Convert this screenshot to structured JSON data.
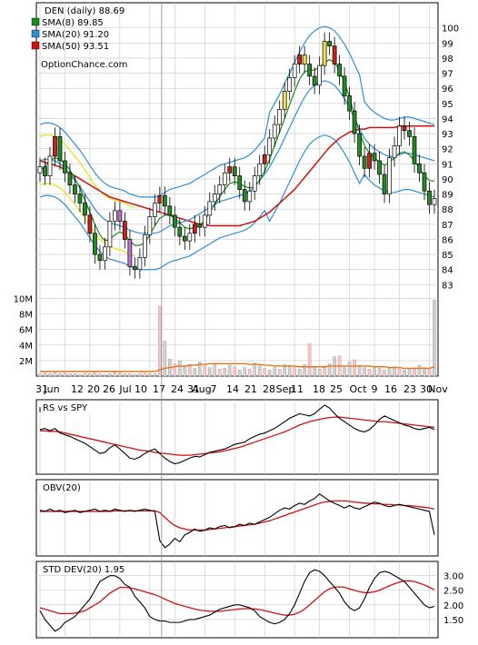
{
  "chart_data": [
    {
      "type": "candlestick",
      "panel": "price",
      "ticker_label": "DEN (daily) 88.69",
      "legend": [
        {
          "label": "SMA(8) 89.85",
          "color": "#1a8a1a"
        },
        {
          "label": "SMA(20) 91.20",
          "color": "#2e8fd6"
        },
        {
          "label": "SMA(50) 93.51",
          "color": "#d01010"
        }
      ],
      "watermark": "OptionChance.com",
      "ylim": [
        82,
        101
      ],
      "y_ticks": [
        "100",
        "99",
        "98",
        "97",
        "96",
        "95",
        "94",
        "93",
        "92",
        "91",
        "90",
        "89",
        "88",
        "87",
        "86",
        "85",
        "84",
        "83"
      ],
      "x_labels": [
        "31",
        "Jun",
        "12",
        "20",
        "26",
        "Jul",
        "10",
        "17",
        "24",
        "31",
        "Aug",
        "7",
        "14",
        "21",
        "28",
        "Sep",
        "11",
        "18",
        "25",
        "Oct",
        "9",
        "16",
        "23",
        "30",
        "Nov"
      ],
      "close_approx": [
        90.8,
        90.2,
        91.5,
        92.8,
        91.2,
        90.4,
        89.6,
        89.0,
        88.4,
        87.6,
        86.4,
        85.0,
        84.6,
        85.5,
        87.2,
        87.9,
        87.2,
        86.0,
        84.2,
        84.0,
        84.8,
        86.3,
        87.5,
        88.4,
        88.9,
        88.2,
        87.6,
        86.8,
        86.2,
        85.9,
        86.4,
        87.0,
        86.8,
        87.6,
        88.5,
        89.0,
        89.6,
        90.4,
        90.8,
        90.2,
        89.3,
        88.5,
        89.2,
        90.2,
        91.0,
        91.6,
        92.7,
        93.6,
        94.6,
        95.8,
        96.7,
        97.6,
        98.2,
        97.6,
        96.8,
        96.2,
        97.5,
        99.1,
        98.8,
        97.6,
        96.8,
        95.5,
        94.5,
        93.0,
        91.5,
        90.7,
        91.7,
        91.2,
        90.3,
        89.0,
        91.4,
        92.2,
        93.5,
        93.2,
        92.8,
        91.0,
        90.4,
        89.2,
        88.3,
        88.7
      ],
      "sma8_approx": [
        90.6,
        90.8,
        91.2,
        91.4,
        91.3,
        91.0,
        90.6,
        90.0,
        89.4,
        88.6,
        87.8,
        87.0,
        86.3,
        85.9,
        86.0,
        86.3,
        86.5,
        86.3,
        85.9,
        85.6,
        85.6,
        85.8,
        86.3,
        86.9,
        87.4,
        87.6,
        87.6,
        87.4,
        87.1,
        86.8,
        86.7,
        86.8,
        86.9,
        87.3,
        87.8,
        88.3,
        88.8,
        89.3,
        89.7,
        89.8,
        89.7,
        89.5,
        89.4,
        89.5,
        89.9,
        90.5,
        91.3,
        92.2,
        93.1,
        94.0,
        94.9,
        95.8,
        96.6,
        97.1,
        97.2,
        97.2,
        97.4,
        97.7,
        97.9,
        97.7,
        97.2,
        96.4,
        95.4,
        94.2,
        93.1,
        92.2,
        91.7,
        91.4,
        91.1,
        90.9,
        91.1,
        91.4,
        91.7,
        91.8,
        91.6,
        91.2,
        90.7,
        90.2,
        89.9,
        89.85
      ],
      "sma20_approx": [
        91.2,
        91.3,
        91.3,
        91.2,
        91.0,
        90.7,
        90.3,
        89.9,
        89.5,
        89.0,
        88.5,
        88.0,
        87.6,
        87.3,
        87.1,
        87.0,
        86.9,
        86.8,
        86.6,
        86.5,
        86.4,
        86.4,
        86.4,
        86.4,
        86.5,
        86.7,
        86.9,
        87.0,
        87.1,
        87.2,
        87.3,
        87.5,
        87.7,
        87.9,
        88.1,
        88.3,
        88.5,
        88.6,
        88.7,
        88.8,
        88.9,
        89.0,
        89.2,
        89.5,
        89.9,
        90.3,
        90.8,
        91.4,
        92.0,
        92.7,
        93.4,
        94.1,
        94.8,
        95.4,
        95.9,
        96.2,
        96.4,
        96.5,
        96.4,
        96.2,
        95.8,
        95.3,
        94.7,
        94.0,
        93.3,
        92.7,
        92.3,
        92.0,
        91.8,
        91.6,
        91.5,
        91.5,
        91.6,
        91.7,
        91.7,
        91.6,
        91.5,
        91.4,
        91.3,
        91.2
      ],
      "sma50_approx": [
        91.2,
        91.1,
        91.0,
        90.9,
        90.8,
        90.6,
        90.4,
        90.2,
        90.0,
        89.8,
        89.6,
        89.4,
        89.2,
        89.0,
        88.8,
        88.7,
        88.6,
        88.5,
        88.4,
        88.3,
        88.2,
        88.1,
        88.0,
        87.9,
        87.8,
        87.7,
        87.6,
        87.5,
        87.4,
        87.3,
        87.2,
        87.1,
        87.0,
        87.0,
        86.9,
        86.9,
        86.9,
        86.9,
        86.9,
        86.9,
        86.9,
        87.0,
        87.1,
        87.2,
        87.4,
        87.6,
        87.8,
        88.1,
        88.4,
        88.7,
        89.0,
        89.3,
        89.7,
        90.1,
        90.5,
        90.9,
        91.3,
        91.7,
        92.1,
        92.4,
        92.7,
        92.9,
        93.1,
        93.2,
        93.3,
        93.3,
        93.4,
        93.4,
        93.4,
        93.4,
        93.4,
        93.4,
        93.5,
        93.5,
        93.5,
        93.5,
        93.5,
        93.5,
        93.5,
        93.51
      ]
    },
    {
      "type": "bar",
      "panel": "volume",
      "y_ticks": [
        "10M",
        "8M",
        "6M",
        "4M",
        "2M"
      ],
      "ylim": [
        0,
        11
      ],
      "values_approx": [
        0.3,
        0.4,
        0.3,
        0.5,
        0.3,
        0.4,
        0.3,
        0.3,
        0.2,
        0.4,
        0.3,
        0.6,
        0.3,
        0.2,
        0.3,
        0.5,
        0.4,
        0.3,
        0.3,
        0.2,
        0.3,
        0.4,
        0.3,
        0.3,
        9.0,
        4.5,
        2.2,
        1.6,
        2.0,
        1.2,
        1.5,
        1.0,
        1.8,
        1.3,
        1.1,
        1.6,
        0.9,
        1.0,
        1.4,
        1.2,
        0.8,
        1.1,
        0.9,
        1.7,
        1.3,
        1.0,
        0.8,
        1.1,
        0.9,
        1.5,
        1.4,
        1.1,
        0.9,
        1.5,
        4.2,
        1.2,
        0.9,
        1.1,
        1.6,
        2.5,
        2.6,
        1.3,
        1.8,
        2.1,
        1.4,
        1.1,
        0.9,
        1.2,
        1.0,
        0.8,
        1.0,
        1.2,
        0.9,
        0.8,
        1.0,
        0.9,
        1.4,
        1.1,
        1.0,
        9.8
      ],
      "avg_approx": [
        0.6,
        0.6,
        0.6,
        0.6,
        0.6,
        0.6,
        0.6,
        0.6,
        0.6,
        0.6,
        0.6,
        0.6,
        0.6,
        0.6,
        0.6,
        0.6,
        0.6,
        0.6,
        0.6,
        0.6,
        0.6,
        0.6,
        0.6,
        0.6,
        0.8,
        1.0,
        1.1,
        1.2,
        1.3,
        1.3,
        1.4,
        1.4,
        1.5,
        1.5,
        1.6,
        1.6,
        1.6,
        1.6,
        1.6,
        1.6,
        1.6,
        1.6,
        1.5,
        1.5,
        1.5,
        1.4,
        1.4,
        1.3,
        1.3,
        1.3,
        1.3,
        1.3,
        1.2,
        1.2,
        1.2,
        1.2,
        1.2,
        1.2,
        1.3,
        1.3,
        1.3,
        1.3,
        1.3,
        1.3,
        1.3,
        1.3,
        1.3,
        1.2,
        1.2,
        1.2,
        1.1,
        1.1,
        1.1,
        1.0,
        1.0,
        1.0,
        1.0,
        1.0,
        1.0,
        1.2
      ]
    },
    {
      "type": "line",
      "panel": "rs",
      "label": "RS vs SPY",
      "series_approx": [
        0.72,
        0.74,
        0.7,
        0.74,
        0.66,
        0.63,
        0.6,
        0.56,
        0.52,
        0.48,
        0.42,
        0.36,
        0.3,
        0.32,
        0.4,
        0.45,
        0.38,
        0.3,
        0.22,
        0.2,
        0.24,
        0.3,
        0.35,
        0.38,
        0.3,
        0.22,
        0.16,
        0.12,
        0.14,
        0.18,
        0.22,
        0.25,
        0.24,
        0.28,
        0.32,
        0.34,
        0.36,
        0.38,
        0.42,
        0.46,
        0.48,
        0.5,
        0.56,
        0.6,
        0.64,
        0.66,
        0.7,
        0.74,
        0.8,
        0.86,
        0.92,
        0.96,
        1.0,
        0.98,
        0.96,
        1.0,
        1.08,
        1.16,
        1.1,
        1.0,
        0.92,
        0.86,
        0.8,
        0.74,
        0.7,
        0.68,
        0.72,
        0.8,
        0.9,
        0.96,
        0.92,
        0.88,
        0.84,
        0.8,
        0.78,
        0.74,
        0.72,
        0.74,
        0.76,
        0.72
      ],
      "avg_approx": [
        0.7,
        0.7,
        0.69,
        0.69,
        0.68,
        0.66,
        0.64,
        0.62,
        0.6,
        0.58,
        0.56,
        0.54,
        0.52,
        0.5,
        0.48,
        0.46,
        0.44,
        0.42,
        0.4,
        0.38,
        0.36,
        0.35,
        0.34,
        0.32,
        0.31,
        0.3,
        0.29,
        0.28,
        0.27,
        0.27,
        0.27,
        0.28,
        0.29,
        0.3,
        0.31,
        0.32,
        0.33,
        0.35,
        0.37,
        0.39,
        0.41,
        0.44,
        0.47,
        0.5,
        0.53,
        0.56,
        0.59,
        0.62,
        0.65,
        0.68,
        0.72,
        0.76,
        0.8,
        0.83,
        0.86,
        0.88,
        0.9,
        0.92,
        0.93,
        0.94,
        0.94,
        0.93,
        0.92,
        0.91,
        0.9,
        0.89,
        0.88,
        0.87,
        0.86,
        0.86,
        0.85,
        0.84,
        0.83,
        0.82,
        0.81,
        0.8,
        0.79,
        0.78,
        0.77,
        0.76
      ]
    },
    {
      "type": "line",
      "panel": "obv",
      "label": "OBV(20)",
      "series_approx": [
        0.72,
        0.7,
        0.74,
        0.7,
        0.72,
        0.68,
        0.7,
        0.72,
        0.68,
        0.7,
        0.72,
        0.74,
        0.7,
        0.72,
        0.7,
        0.74,
        0.72,
        0.7,
        0.72,
        0.7,
        0.72,
        0.74,
        0.72,
        0.7,
        0.2,
        0.08,
        0.14,
        0.24,
        0.18,
        0.3,
        0.34,
        0.4,
        0.36,
        0.38,
        0.42,
        0.4,
        0.44,
        0.46,
        0.42,
        0.44,
        0.48,
        0.46,
        0.5,
        0.48,
        0.52,
        0.56,
        0.6,
        0.66,
        0.72,
        0.76,
        0.74,
        0.8,
        0.84,
        0.82,
        0.88,
        0.92,
        1.0,
        0.94,
        0.88,
        0.84,
        0.8,
        0.76,
        0.8,
        0.76,
        0.74,
        0.78,
        0.82,
        0.86,
        0.84,
        0.8,
        0.78,
        0.8,
        0.82,
        0.8,
        0.78,
        0.76,
        0.74,
        0.72,
        0.7,
        0.3
      ],
      "avg_approx": [
        0.7,
        0.7,
        0.7,
        0.7,
        0.7,
        0.7,
        0.7,
        0.7,
        0.7,
        0.7,
        0.7,
        0.7,
        0.7,
        0.7,
        0.7,
        0.71,
        0.71,
        0.71,
        0.71,
        0.71,
        0.71,
        0.71,
        0.71,
        0.71,
        0.68,
        0.6,
        0.52,
        0.46,
        0.42,
        0.4,
        0.38,
        0.38,
        0.38,
        0.38,
        0.39,
        0.4,
        0.41,
        0.42,
        0.43,
        0.44,
        0.45,
        0.46,
        0.47,
        0.48,
        0.5,
        0.52,
        0.54,
        0.57,
        0.6,
        0.63,
        0.66,
        0.69,
        0.72,
        0.75,
        0.78,
        0.81,
        0.84,
        0.86,
        0.87,
        0.88,
        0.88,
        0.88,
        0.87,
        0.86,
        0.85,
        0.84,
        0.84,
        0.83,
        0.83,
        0.82,
        0.82,
        0.81,
        0.81,
        0.8,
        0.8,
        0.79,
        0.78,
        0.77,
        0.76,
        0.74
      ]
    },
    {
      "type": "line",
      "panel": "stddev",
      "label": "STD DEV(20) 1.95",
      "y_ticks": [
        "3.00",
        "2.50",
        "2.00",
        "1.50"
      ],
      "ylim": [
        1.0,
        3.3
      ],
      "series_approx": [
        1.8,
        1.5,
        1.3,
        1.1,
        1.2,
        1.4,
        1.5,
        1.6,
        1.8,
        2.0,
        2.2,
        2.5,
        2.8,
        2.9,
        3.0,
        3.0,
        2.9,
        2.7,
        2.6,
        2.3,
        2.1,
        1.9,
        1.6,
        1.5,
        1.45,
        1.45,
        1.4,
        1.4,
        1.4,
        1.45,
        1.5,
        1.5,
        1.55,
        1.6,
        1.65,
        1.75,
        1.85,
        1.9,
        1.95,
        2.0,
        2.0,
        1.95,
        1.9,
        1.8,
        1.6,
        1.5,
        1.4,
        1.35,
        1.4,
        1.5,
        1.7,
        2.0,
        2.4,
        2.8,
        3.1,
        3.2,
        3.15,
        3.0,
        2.8,
        2.6,
        2.4,
        2.1,
        1.9,
        1.8,
        1.9,
        2.2,
        2.6,
        2.9,
        3.1,
        3.15,
        3.1,
        3.0,
        2.9,
        2.8,
        2.6,
        2.4,
        2.2,
        2.0,
        1.9,
        1.95
      ],
      "avg_approx": [
        1.9,
        1.85,
        1.8,
        1.75,
        1.7,
        1.7,
        1.7,
        1.72,
        1.75,
        1.8,
        1.9,
        2.0,
        2.1,
        2.25,
        2.4,
        2.5,
        2.6,
        2.6,
        2.58,
        2.55,
        2.5,
        2.45,
        2.4,
        2.35,
        2.28,
        2.2,
        2.12,
        2.05,
        2.0,
        1.95,
        1.9,
        1.86,
        1.82,
        1.8,
        1.78,
        1.78,
        1.78,
        1.8,
        1.82,
        1.84,
        1.86,
        1.87,
        1.87,
        1.86,
        1.84,
        1.8,
        1.76,
        1.72,
        1.68,
        1.65,
        1.65,
        1.68,
        1.75,
        1.85,
        2.0,
        2.15,
        2.3,
        2.45,
        2.55,
        2.6,
        2.62,
        2.6,
        2.55,
        2.5,
        2.45,
        2.42,
        2.42,
        2.45,
        2.5,
        2.58,
        2.65,
        2.72,
        2.78,
        2.82,
        2.82,
        2.8,
        2.74,
        2.68,
        2.6,
        2.52
      ]
    }
  ]
}
